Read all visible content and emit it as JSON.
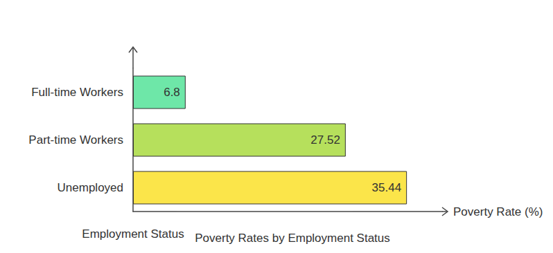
{
  "chart_data": {
    "type": "bar",
    "title": "Poverty Rates by Employment Status",
    "x_label": "Poverty Rate (%)",
    "y_label": "Employment Status",
    "orientation": "horizontal",
    "categories": [
      "Full-time Workers",
      "Part-time Workers",
      "Unemployed"
    ],
    "values": [
      6.8,
      27.52,
      35.44
    ],
    "colors": [
      "#6ee7a8",
      "#b6e05c",
      "#fbe54a"
    ],
    "xlim": [
      0,
      40
    ],
    "grid": false,
    "data_labels": true,
    "tick_labels": "y"
  }
}
